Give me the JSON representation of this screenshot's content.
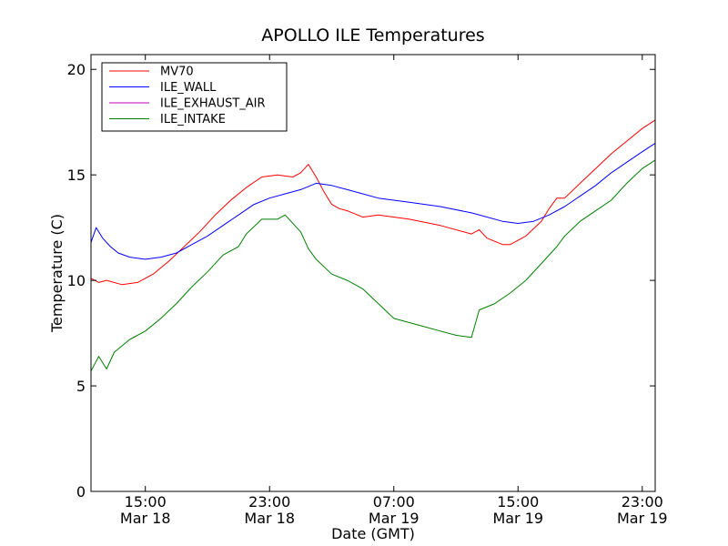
{
  "chart_data": {
    "type": "line",
    "title": "APOLLO ILE Temperatures",
    "xlabel": "Date (GMT)",
    "ylabel": "Temperature (C)",
    "xlim": [
      "2012-03-18 11:30",
      "2012-03-19 23:50"
    ],
    "ylim": [
      0,
      20.7
    ],
    "y_ticks": [
      0,
      5,
      10,
      15,
      20
    ],
    "x_ticks": [
      {
        "t": "2012-03-18 15:00",
        "time": "15:00",
        "date": "Mar 18"
      },
      {
        "t": "2012-03-18 23:00",
        "time": "23:00",
        "date": "Mar 18"
      },
      {
        "t": "2012-03-19 07:00",
        "time": "07:00",
        "date": "Mar 19"
      },
      {
        "t": "2012-03-19 15:00",
        "time": "15:00",
        "date": "Mar 19"
      },
      {
        "t": "2012-03-19 23:00",
        "time": "23:00",
        "date": "Mar 19"
      }
    ],
    "grid": false,
    "legend_position": "top-left",
    "series": [
      {
        "name": "MV70",
        "color": "#ff0000",
        "points": [
          [
            "2012-03-18 11:30",
            10.1
          ],
          [
            "2012-03-18 12:00",
            9.9
          ],
          [
            "2012-03-18 12:30",
            10.0
          ],
          [
            "2012-03-18 13:30",
            9.8
          ],
          [
            "2012-03-18 14:30",
            9.9
          ],
          [
            "2012-03-18 15:30",
            10.3
          ],
          [
            "2012-03-18 16:30",
            10.9
          ],
          [
            "2012-03-18 17:30",
            11.6
          ],
          [
            "2012-03-18 18:30",
            12.3
          ],
          [
            "2012-03-18 19:30",
            13.1
          ],
          [
            "2012-03-18 20:30",
            13.8
          ],
          [
            "2012-03-18 21:30",
            14.4
          ],
          [
            "2012-03-18 22:30",
            14.9
          ],
          [
            "2012-03-18 23:30",
            15.0
          ],
          [
            "2012-03-19 00:30",
            14.9
          ],
          [
            "2012-03-19 01:00",
            15.1
          ],
          [
            "2012-03-19 01:30",
            15.5
          ],
          [
            "2012-03-19 02:00",
            14.9
          ],
          [
            "2012-03-19 02:30",
            14.2
          ],
          [
            "2012-03-19 03:00",
            13.6
          ],
          [
            "2012-03-19 03:30",
            13.4
          ],
          [
            "2012-03-19 04:00",
            13.3
          ],
          [
            "2012-03-19 05:00",
            13.0
          ],
          [
            "2012-03-19 06:00",
            13.1
          ],
          [
            "2012-03-19 08:00",
            12.9
          ],
          [
            "2012-03-19 10:00",
            12.6
          ],
          [
            "2012-03-19 12:00",
            12.2
          ],
          [
            "2012-03-19 12:30",
            12.4
          ],
          [
            "2012-03-19 13:00",
            12.0
          ],
          [
            "2012-03-19 14:00",
            11.7
          ],
          [
            "2012-03-19 14:30",
            11.7
          ],
          [
            "2012-03-19 15:30",
            12.1
          ],
          [
            "2012-03-19 16:30",
            12.8
          ],
          [
            "2012-03-19 17:00",
            13.4
          ],
          [
            "2012-03-19 17:30",
            13.9
          ],
          [
            "2012-03-19 18:00",
            13.9
          ],
          [
            "2012-03-19 19:00",
            14.6
          ],
          [
            "2012-03-19 20:00",
            15.3
          ],
          [
            "2012-03-19 21:00",
            16.0
          ],
          [
            "2012-03-19 22:00",
            16.6
          ],
          [
            "2012-03-19 23:00",
            17.2
          ],
          [
            "2012-03-19 23:50",
            17.6
          ]
        ]
      },
      {
        "name": "ILE_WALL",
        "color": "#0000ff",
        "points": [
          [
            "2012-03-18 11:30",
            11.8
          ],
          [
            "2012-03-18 11:50",
            12.5
          ],
          [
            "2012-03-18 12:15",
            12.0
          ],
          [
            "2012-03-18 12:45",
            11.6
          ],
          [
            "2012-03-18 13:15",
            11.3
          ],
          [
            "2012-03-18 14:00",
            11.1
          ],
          [
            "2012-03-18 15:00",
            11.0
          ],
          [
            "2012-03-18 16:00",
            11.1
          ],
          [
            "2012-03-18 17:00",
            11.3
          ],
          [
            "2012-03-18 18:00",
            11.7
          ],
          [
            "2012-03-18 19:00",
            12.1
          ],
          [
            "2012-03-18 20:00",
            12.6
          ],
          [
            "2012-03-18 21:00",
            13.1
          ],
          [
            "2012-03-18 22:00",
            13.6
          ],
          [
            "2012-03-18 23:00",
            13.9
          ],
          [
            "2012-03-19 00:00",
            14.1
          ],
          [
            "2012-03-19 01:00",
            14.3
          ],
          [
            "2012-03-19 02:00",
            14.6
          ],
          [
            "2012-03-19 03:00",
            14.5
          ],
          [
            "2012-03-19 04:00",
            14.3
          ],
          [
            "2012-03-19 05:00",
            14.1
          ],
          [
            "2012-03-19 06:00",
            13.9
          ],
          [
            "2012-03-19 08:00",
            13.7
          ],
          [
            "2012-03-19 10:00",
            13.5
          ],
          [
            "2012-03-19 12:00",
            13.2
          ],
          [
            "2012-03-19 14:00",
            12.8
          ],
          [
            "2012-03-19 15:00",
            12.7
          ],
          [
            "2012-03-19 16:00",
            12.8
          ],
          [
            "2012-03-19 17:00",
            13.1
          ],
          [
            "2012-03-19 18:00",
            13.5
          ],
          [
            "2012-03-19 19:00",
            14.0
          ],
          [
            "2012-03-19 20:00",
            14.5
          ],
          [
            "2012-03-19 21:00",
            15.1
          ],
          [
            "2012-03-19 22:00",
            15.6
          ],
          [
            "2012-03-19 23:00",
            16.1
          ],
          [
            "2012-03-19 23:50",
            16.5
          ]
        ]
      },
      {
        "name": "ILE_EXHAUST_AIR",
        "color": "#bf00bf",
        "points": []
      },
      {
        "name": "ILE_INTAKE",
        "color": "#008000",
        "points": [
          [
            "2012-03-18 11:30",
            5.7
          ],
          [
            "2012-03-18 12:00",
            6.4
          ],
          [
            "2012-03-18 12:30",
            5.8
          ],
          [
            "2012-03-18 13:00",
            6.6
          ],
          [
            "2012-03-18 14:00",
            7.2
          ],
          [
            "2012-03-18 15:00",
            7.6
          ],
          [
            "2012-03-18 16:00",
            8.2
          ],
          [
            "2012-03-18 17:00",
            8.9
          ],
          [
            "2012-03-18 18:00",
            9.7
          ],
          [
            "2012-03-18 19:00",
            10.4
          ],
          [
            "2012-03-18 20:00",
            11.2
          ],
          [
            "2012-03-18 21:00",
            11.6
          ],
          [
            "2012-03-18 21:30",
            12.2
          ],
          [
            "2012-03-18 22:30",
            12.9
          ],
          [
            "2012-03-18 23:30",
            12.9
          ],
          [
            "2012-03-19 00:00",
            13.1
          ],
          [
            "2012-03-19 01:00",
            12.3
          ],
          [
            "2012-03-19 01:30",
            11.5
          ],
          [
            "2012-03-19 02:00",
            11.0
          ],
          [
            "2012-03-19 03:00",
            10.3
          ],
          [
            "2012-03-19 04:00",
            10.0
          ],
          [
            "2012-03-19 05:00",
            9.6
          ],
          [
            "2012-03-19 06:00",
            8.9
          ],
          [
            "2012-03-19 07:00",
            8.2
          ],
          [
            "2012-03-19 08:00",
            8.0
          ],
          [
            "2012-03-19 09:00",
            7.8
          ],
          [
            "2012-03-19 10:00",
            7.6
          ],
          [
            "2012-03-19 11:00",
            7.4
          ],
          [
            "2012-03-19 12:00",
            7.3
          ],
          [
            "2012-03-19 12:30",
            8.6
          ],
          [
            "2012-03-19 13:30",
            8.9
          ],
          [
            "2012-03-19 14:30",
            9.4
          ],
          [
            "2012-03-19 15:30",
            10.0
          ],
          [
            "2012-03-19 16:30",
            10.8
          ],
          [
            "2012-03-19 17:30",
            11.6
          ],
          [
            "2012-03-19 18:00",
            12.1
          ],
          [
            "2012-03-19 19:00",
            12.8
          ],
          [
            "2012-03-19 20:00",
            13.3
          ],
          [
            "2012-03-19 21:00",
            13.8
          ],
          [
            "2012-03-19 22:00",
            14.6
          ],
          [
            "2012-03-19 23:00",
            15.3
          ],
          [
            "2012-03-19 23:50",
            15.7
          ]
        ]
      }
    ]
  }
}
